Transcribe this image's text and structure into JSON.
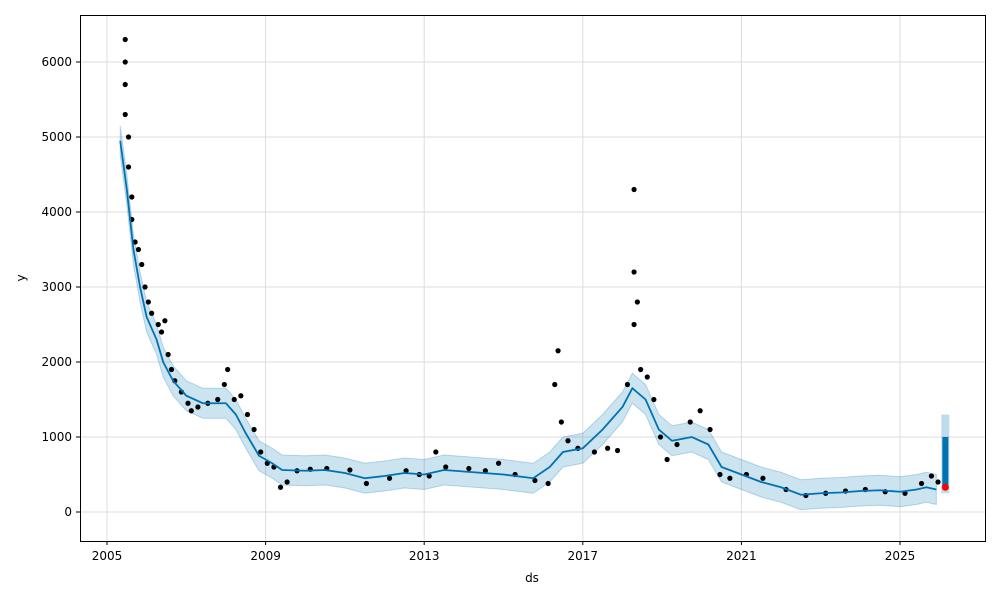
{
  "chart_data": {
    "type": "line",
    "xlabel": "ds",
    "ylabel": "y",
    "xlim": [
      "2004-04",
      "2027-03"
    ],
    "ylim": [
      -400,
      6650
    ],
    "xticks": [
      "2005",
      "2009",
      "2013",
      "2017",
      "2021",
      "2025"
    ],
    "yticks": [
      0,
      1000,
      2000,
      3000,
      4000,
      5000,
      6000
    ],
    "grid": true,
    "colors": {
      "forecast": "#0072B2",
      "band": "#0072B2",
      "observed": "#000000",
      "highlight": "#ff0000"
    },
    "forecast": [
      [
        "2005-05",
        4950
      ],
      [
        "2005-07",
        4300
      ],
      [
        "2005-09",
        3500
      ],
      [
        "2005-11",
        3000
      ],
      [
        "2006-01",
        2600
      ],
      [
        "2006-04",
        2300
      ],
      [
        "2006-06",
        2000
      ],
      [
        "2006-09",
        1750
      ],
      [
        "2007-01",
        1550
      ],
      [
        "2007-06",
        1450
      ],
      [
        "2008-01",
        1450
      ],
      [
        "2008-04",
        1300
      ],
      [
        "2008-07",
        1050
      ],
      [
        "2008-11",
        750
      ],
      [
        "2009-03",
        650
      ],
      [
        "2009-06",
        560
      ],
      [
        "2010-01",
        550
      ],
      [
        "2010-07",
        560
      ],
      [
        "2011-01",
        520
      ],
      [
        "2011-07",
        450
      ],
      [
        "2012-01",
        480
      ],
      [
        "2012-07",
        520
      ],
      [
        "2013-01",
        500
      ],
      [
        "2013-07",
        560
      ],
      [
        "2014-01",
        540
      ],
      [
        "2014-07",
        520
      ],
      [
        "2015-01",
        500
      ],
      [
        "2015-10",
        450
      ],
      [
        "2016-03",
        600
      ],
      [
        "2016-07",
        800
      ],
      [
        "2017-01",
        850
      ],
      [
        "2017-07",
        1100
      ],
      [
        "2018-01",
        1400
      ],
      [
        "2018-04",
        1650
      ],
      [
        "2018-08",
        1500
      ],
      [
        "2018-12",
        1100
      ],
      [
        "2019-04",
        950
      ],
      [
        "2019-10",
        1000
      ],
      [
        "2020-03",
        900
      ],
      [
        "2020-07",
        600
      ],
      [
        "2021-01",
        500
      ],
      [
        "2021-07",
        400
      ],
      [
        "2022-01",
        330
      ],
      [
        "2022-07",
        230
      ],
      [
        "2023-01",
        250
      ],
      [
        "2023-07",
        260
      ],
      [
        "2024-01",
        280
      ],
      [
        "2024-07",
        290
      ],
      [
        "2025-01",
        270
      ],
      [
        "2025-06",
        300
      ],
      [
        "2025-09",
        330
      ],
      [
        "2025-12",
        300
      ]
    ],
    "band_halfwidth": 200,
    "forecast_spike": {
      "date": "2025-12",
      "yhat_low": 300,
      "yhat_high": 1000,
      "lower": 250,
      "upper": 1300
    },
    "observed": [
      [
        "2005-05",
        6300
      ],
      [
        "2005-05",
        6000
      ],
      [
        "2005-05",
        5700
      ],
      [
        "2005-05",
        5300
      ],
      [
        "2005-06",
        5000
      ],
      [
        "2005-06",
        4600
      ],
      [
        "2005-07",
        4200
      ],
      [
        "2005-07",
        3900
      ],
      [
        "2005-08",
        3600
      ],
      [
        "2005-09",
        3500
      ],
      [
        "2005-10",
        3300
      ],
      [
        "2005-11",
        3000
      ],
      [
        "2005-12",
        2800
      ],
      [
        "2006-01",
        2650
      ],
      [
        "2006-03",
        2500
      ],
      [
        "2006-04",
        2400
      ],
      [
        "2006-05",
        2550
      ],
      [
        "2006-06",
        2100
      ],
      [
        "2006-07",
        1900
      ],
      [
        "2006-08",
        1750
      ],
      [
        "2006-10",
        1600
      ],
      [
        "2006-12",
        1450
      ],
      [
        "2007-01",
        1350
      ],
      [
        "2007-03",
        1400
      ],
      [
        "2007-06",
        1450
      ],
      [
        "2007-09",
        1500
      ],
      [
        "2007-11",
        1700
      ],
      [
        "2007-12",
        1900
      ],
      [
        "2008-02",
        1500
      ],
      [
        "2008-04",
        1550
      ],
      [
        "2008-06",
        1300
      ],
      [
        "2008-08",
        1100
      ],
      [
        "2008-10",
        800
      ],
      [
        "2008-12",
        650
      ],
      [
        "2009-02",
        600
      ],
      [
        "2009-04",
        330
      ],
      [
        "2009-06",
        400
      ],
      [
        "2009-09",
        550
      ],
      [
        "2010-01",
        570
      ],
      [
        "2010-06",
        580
      ],
      [
        "2011-01",
        560
      ],
      [
        "2011-06",
        380
      ],
      [
        "2012-01",
        450
      ],
      [
        "2012-06",
        550
      ],
      [
        "2012-10",
        500
      ],
      [
        "2013-01",
        480
      ],
      [
        "2013-03",
        800
      ],
      [
        "2013-06",
        600
      ],
      [
        "2014-01",
        580
      ],
      [
        "2014-06",
        550
      ],
      [
        "2014-10",
        650
      ],
      [
        "2015-03",
        500
      ],
      [
        "2015-09",
        420
      ],
      [
        "2016-01",
        380
      ],
      [
        "2016-03",
        1700
      ],
      [
        "2016-04",
        2150
      ],
      [
        "2016-05",
        1200
      ],
      [
        "2016-07",
        950
      ],
      [
        "2016-10",
        850
      ],
      [
        "2017-03",
        800
      ],
      [
        "2017-07",
        850
      ],
      [
        "2017-10",
        820
      ],
      [
        "2018-01",
        1700
      ],
      [
        "2018-03",
        2500
      ],
      [
        "2018-03",
        3200
      ],
      [
        "2018-03",
        4300
      ],
      [
        "2018-04",
        2800
      ],
      [
        "2018-05",
        1900
      ],
      [
        "2018-07",
        1800
      ],
      [
        "2018-09",
        1500
      ],
      [
        "2018-11",
        1000
      ],
      [
        "2019-01",
        700
      ],
      [
        "2019-04",
        900
      ],
      [
        "2019-08",
        1200
      ],
      [
        "2019-11",
        1350
      ],
      [
        "2020-02",
        1100
      ],
      [
        "2020-05",
        500
      ],
      [
        "2020-08",
        450
      ],
      [
        "2021-01",
        500
      ],
      [
        "2021-06",
        450
      ],
      [
        "2022-01",
        300
      ],
      [
        "2022-07",
        220
      ],
      [
        "2023-01",
        250
      ],
      [
        "2023-07",
        280
      ],
      [
        "2024-01",
        300
      ],
      [
        "2024-07",
        270
      ],
      [
        "2025-01",
        250
      ],
      [
        "2025-06",
        380
      ],
      [
        "2025-09",
        480
      ],
      [
        "2025-11",
        400
      ]
    ],
    "highlight_point": [
      "2025-12",
      330
    ]
  }
}
